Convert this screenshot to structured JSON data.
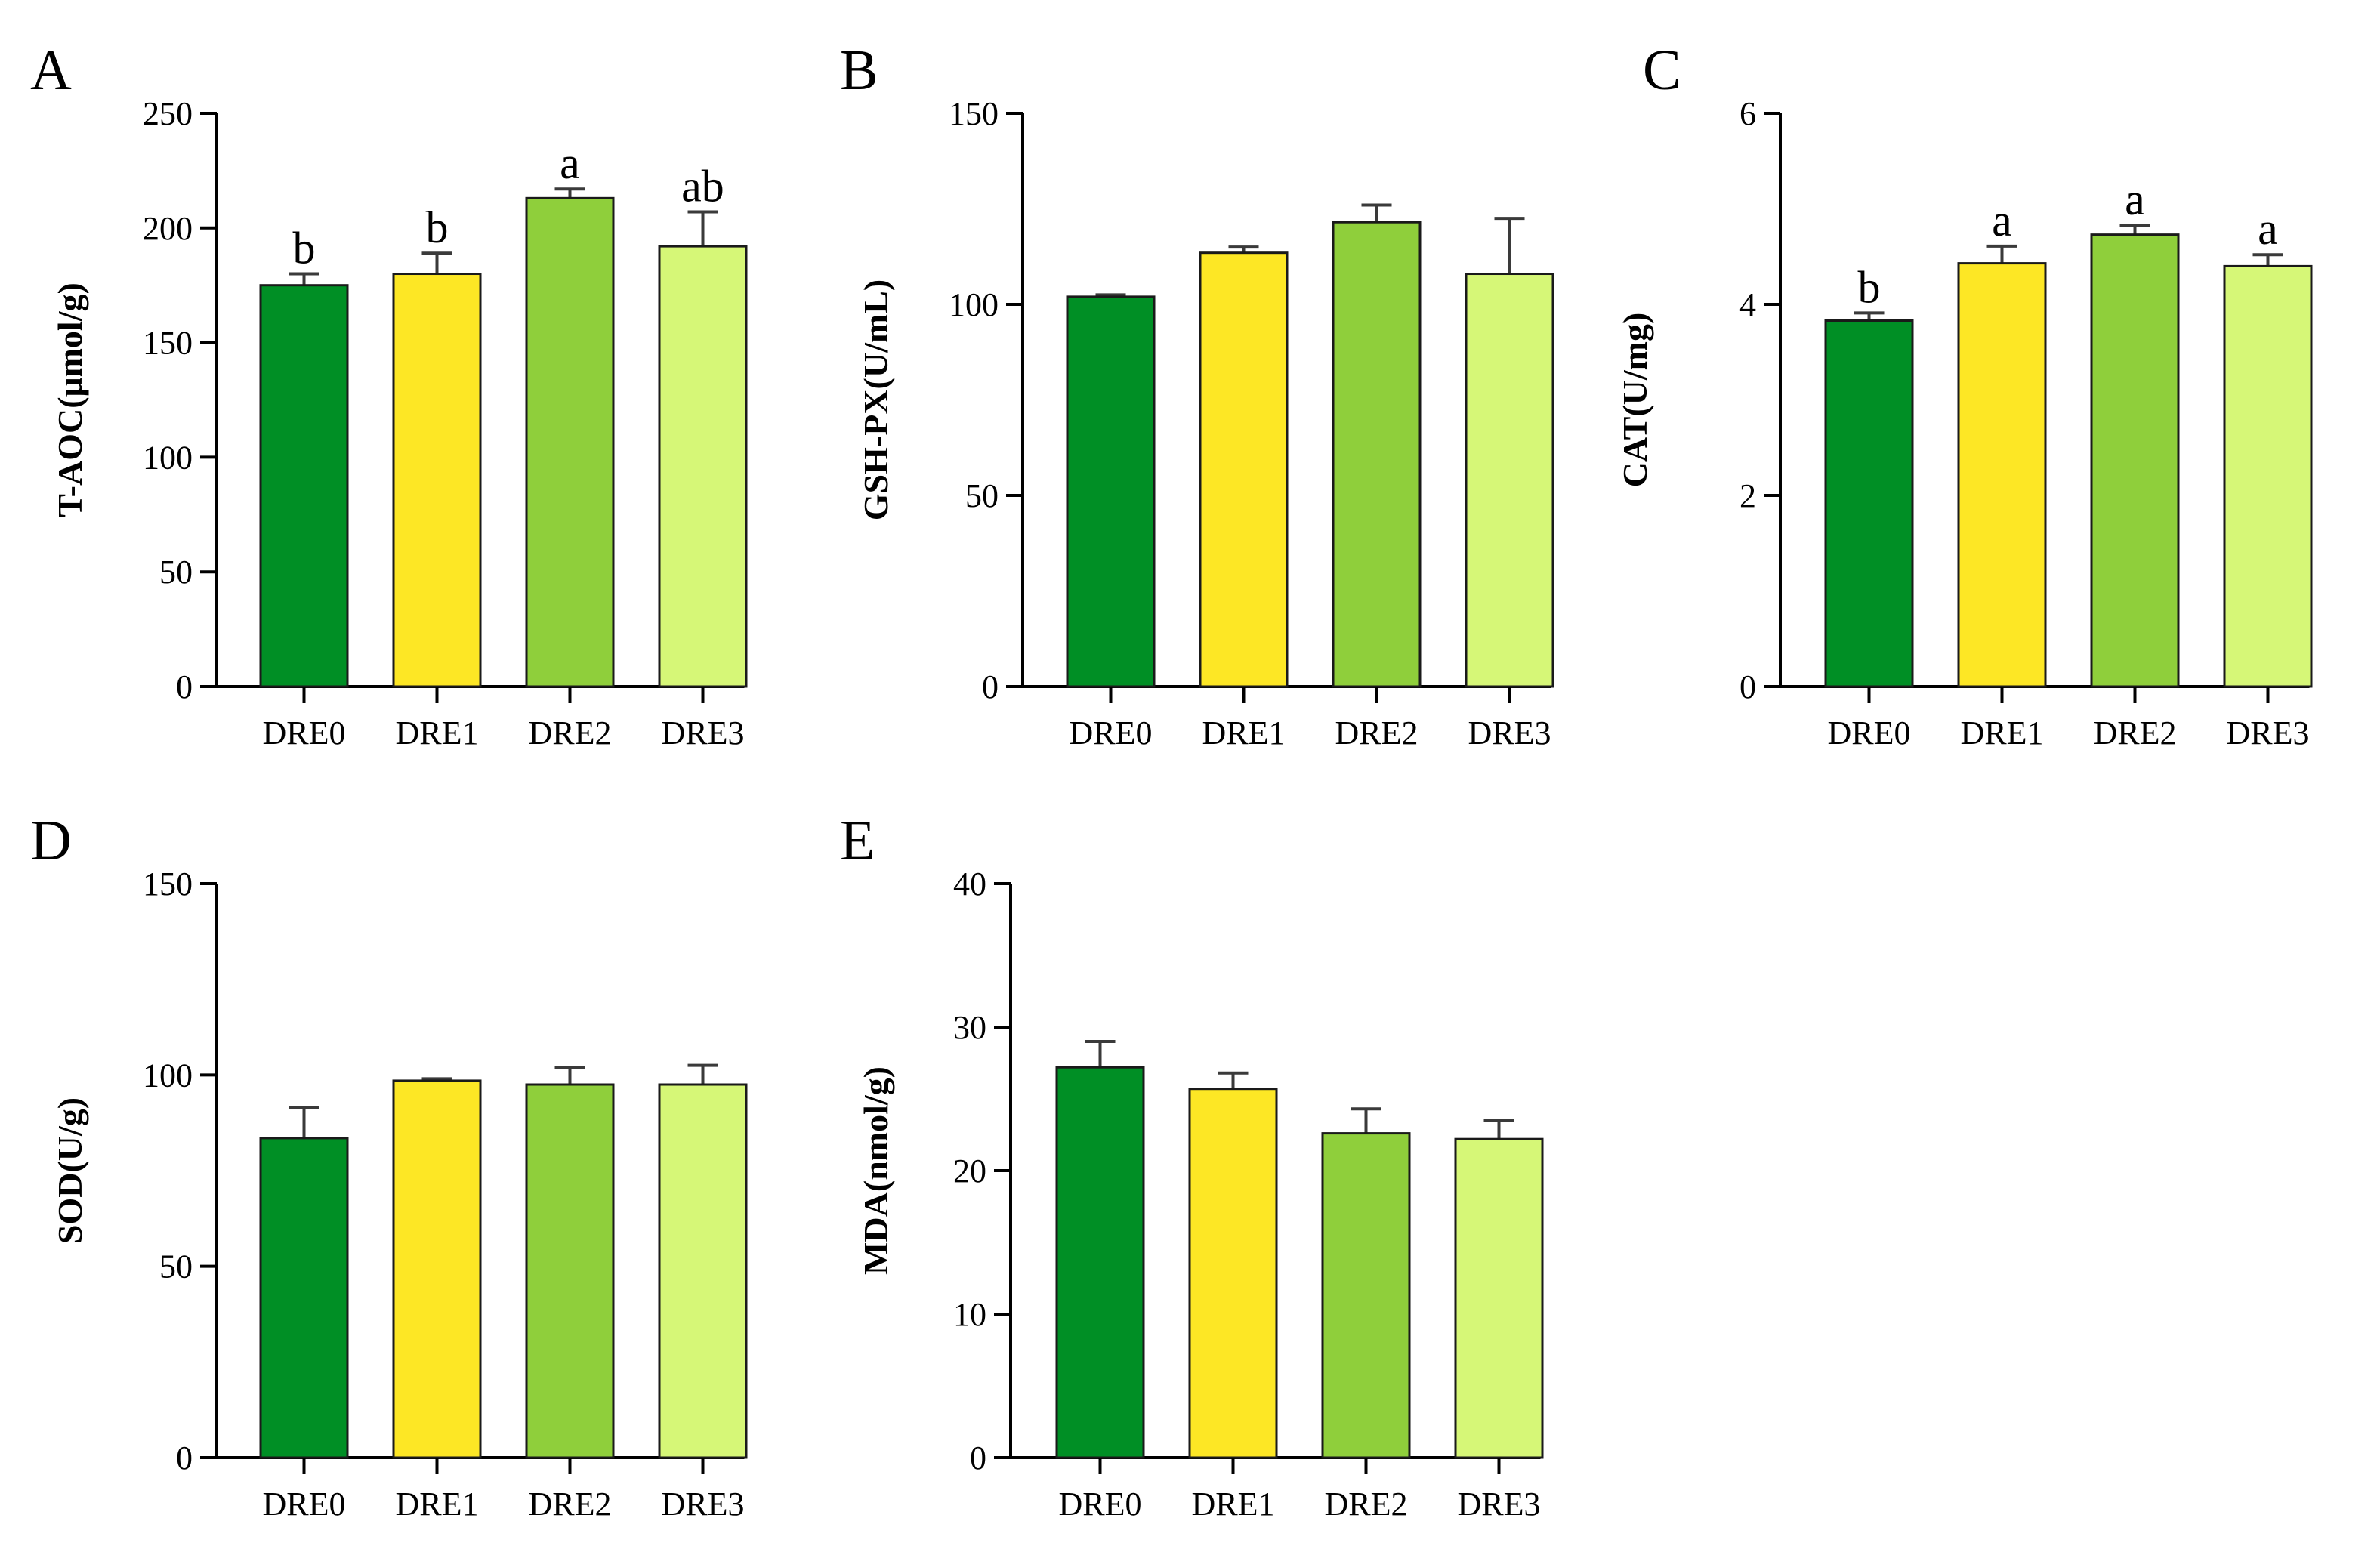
{
  "colors": {
    "DRE0": "#008F25",
    "DRE1": "#FDE725",
    "DRE2": "#8FCF3B",
    "DRE3": "#D6F777",
    "axis": "#000000",
    "errorbar": "#3a3a3a"
  },
  "chart_data": [
    {
      "panel": "A",
      "type": "bar",
      "categories": [
        "DRE0",
        "DRE1",
        "DRE2",
        "DRE3"
      ],
      "values": [
        175,
        180,
        213,
        192
      ],
      "errors": [
        5,
        9,
        4,
        15
      ],
      "significance": [
        "b",
        "b",
        "a",
        "ab"
      ],
      "ylabel": "T-AOC(μmol/g)",
      "ylim": [
        0,
        250
      ],
      "yticks": [
        0,
        50,
        100,
        150,
        200,
        250
      ],
      "ytick_labels": [
        "0",
        "50",
        "100",
        "150",
        "200",
        "250"
      ]
    },
    {
      "panel": "B",
      "type": "bar",
      "categories": [
        "DRE0",
        "DRE1",
        "DRE2",
        "DRE3"
      ],
      "values": [
        102,
        113.5,
        121.5,
        108
      ],
      "errors": [
        0.5,
        1.5,
        4.5,
        14.5
      ],
      "significance": [
        "",
        "",
        "",
        ""
      ],
      "ylabel": "GSH-PX(U/mL)",
      "ylim": [
        0,
        150
      ],
      "yticks": [
        0,
        50,
        100,
        150
      ],
      "ytick_labels": [
        "0",
        "50",
        "100",
        "150"
      ]
    },
    {
      "panel": "C",
      "type": "bar",
      "categories": [
        "DRE0",
        "DRE1",
        "DRE2",
        "DRE3"
      ],
      "values": [
        3.83,
        4.43,
        4.73,
        4.4
      ],
      "errors": [
        0.08,
        0.18,
        0.1,
        0.12
      ],
      "significance": [
        "b",
        "a",
        "a",
        "a"
      ],
      "ylabel": "CAT(U/mg)",
      "ylim": [
        0,
        6
      ],
      "yticks": [
        0,
        2,
        4,
        6
      ],
      "ytick_labels": [
        "0",
        "2",
        "4",
        "6"
      ]
    },
    {
      "panel": "D",
      "type": "bar",
      "categories": [
        "DRE0",
        "DRE1",
        "DRE2",
        "DRE3"
      ],
      "values": [
        83.5,
        98.5,
        97.5,
        97.5
      ],
      "errors": [
        8,
        0.5,
        4.5,
        5
      ],
      "significance": [
        "",
        "",
        "",
        ""
      ],
      "ylabel": "SOD(U/g)",
      "ylim": [
        0,
        150
      ],
      "yticks": [
        0,
        50,
        100,
        150
      ],
      "ytick_labels": [
        "0",
        "50",
        "100",
        "150"
      ]
    },
    {
      "panel": "E",
      "type": "bar",
      "categories": [
        "DRE0",
        "DRE1",
        "DRE2",
        "DRE3"
      ],
      "values": [
        27.2,
        25.7,
        22.6,
        22.2
      ],
      "errors": [
        1.8,
        1.1,
        1.7,
        1.3
      ],
      "significance": [
        "",
        "",
        "",
        ""
      ],
      "ylabel": "MDA(nmol/g)",
      "ylim": [
        0,
        40
      ],
      "yticks": [
        0,
        10,
        20,
        30,
        40
      ],
      "ytick_labels": [
        "0",
        "10",
        "20",
        "30",
        "40"
      ]
    }
  ]
}
